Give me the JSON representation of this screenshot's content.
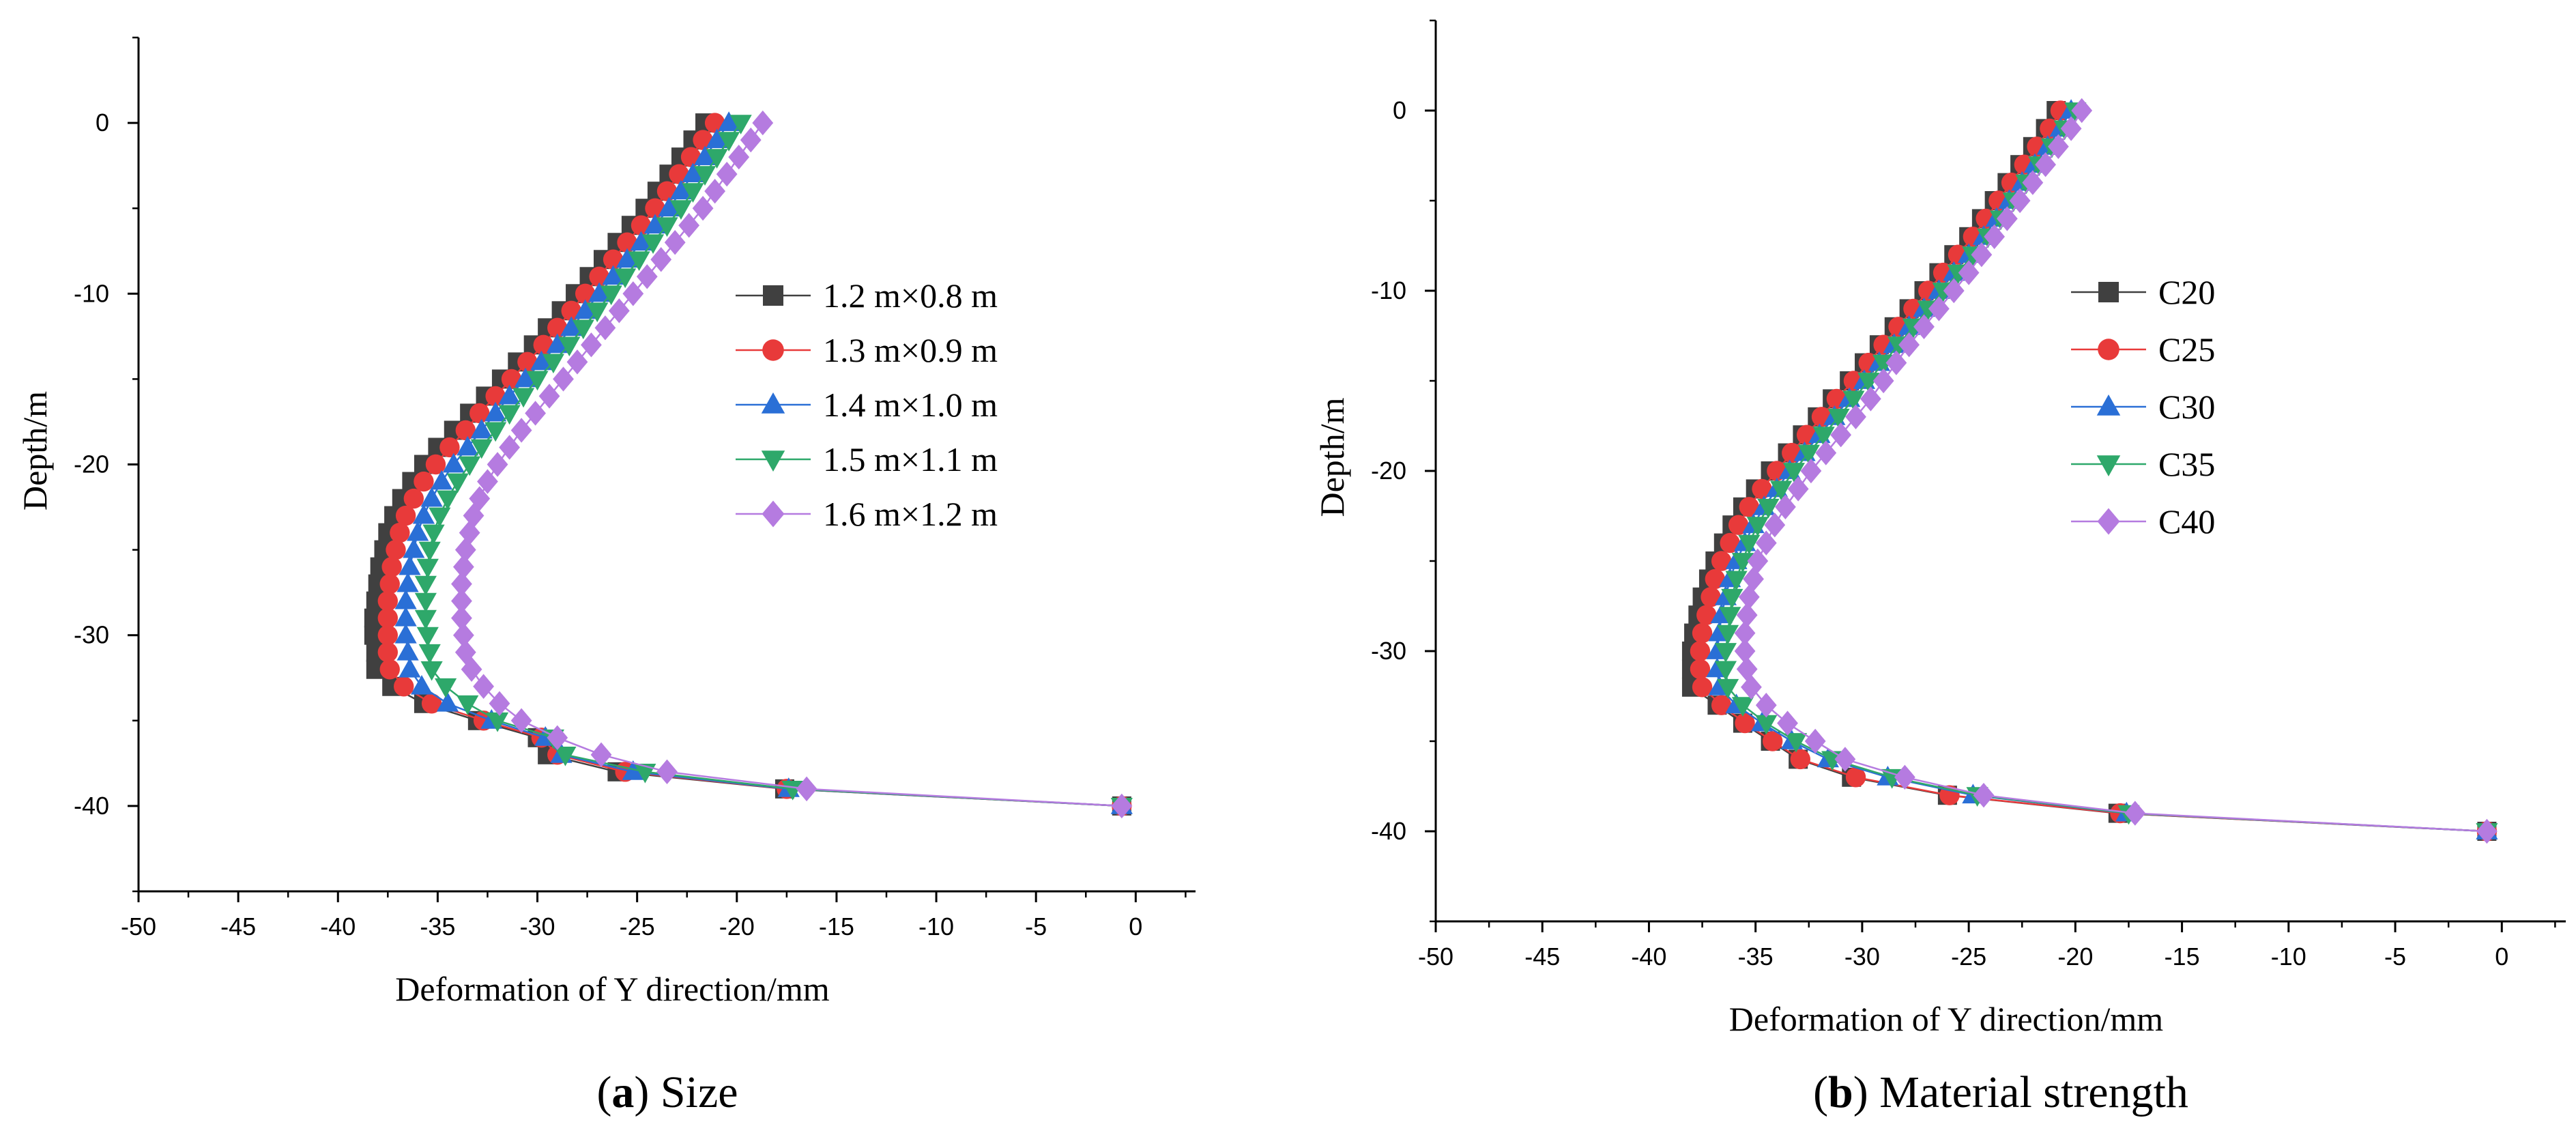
{
  "chart_data": [
    {
      "type": "line",
      "caption_letter": "a",
      "caption_open": "(",
      "caption_close": ")",
      "caption_text": " Size",
      "xlabel": "Deformation of Y direction/mm",
      "ylabel": "Depth/m",
      "xlim": [
        -50,
        3
      ],
      "ylim": [
        -45,
        5
      ],
      "xticks": [
        -50,
        -45,
        -40,
        -35,
        -30,
        -25,
        -20,
        -15,
        -10,
        -5,
        0
      ],
      "xtick_labels": [
        "-50",
        "-45",
        "-40",
        "-35",
        "-30",
        "-25",
        "-20",
        "-15",
        "-10",
        "-5",
        "0"
      ],
      "yticks": [
        0,
        -10,
        -20,
        -30,
        -40
      ],
      "ytick_labels": [
        "0",
        "-10",
        "-20",
        "-30",
        "-40"
      ],
      "legend_position": "upper-middle",
      "y": [
        0,
        -1,
        -2,
        -3,
        -4,
        -5,
        -6,
        -7,
        -8,
        -9,
        -10,
        -11,
        -12,
        -13,
        -14,
        -15,
        -16,
        -17,
        -18,
        -19,
        -20,
        -21,
        -22,
        -23,
        -24,
        -25,
        -26,
        -27,
        -28,
        -29,
        -30,
        -31,
        -32,
        -33,
        -34,
        -35,
        -36,
        -37,
        -38,
        -39,
        -40
      ],
      "series": [
        {
          "name": "1.2 m×0.8 m",
          "color": "#404040",
          "marker": "square",
          "x": [
            -21.6,
            -22.2,
            -22.8,
            -23.4,
            -24.0,
            -24.6,
            -25.3,
            -26.0,
            -26.7,
            -27.4,
            -28.1,
            -28.8,
            -29.5,
            -30.2,
            -31.0,
            -31.8,
            -32.6,
            -33.4,
            -34.2,
            -35.0,
            -35.7,
            -36.3,
            -36.8,
            -37.2,
            -37.5,
            -37.7,
            -37.9,
            -38.0,
            -38.1,
            -38.2,
            -38.2,
            -38.1,
            -38.1,
            -37.3,
            -35.7,
            -33.0,
            -30.0,
            -29.5,
            -26.0,
            -17.6,
            -0.7
          ]
        },
        {
          "name": "1.3 m×0.9 m",
          "color": "#e83a3a",
          "marker": "circle",
          "x": [
            -21.1,
            -21.7,
            -22.3,
            -22.9,
            -23.5,
            -24.1,
            -24.8,
            -25.5,
            -26.2,
            -26.9,
            -27.6,
            -28.3,
            -29.0,
            -29.7,
            -30.5,
            -31.3,
            -32.1,
            -32.9,
            -33.6,
            -34.4,
            -35.1,
            -35.7,
            -36.2,
            -36.6,
            -36.9,
            -37.1,
            -37.3,
            -37.4,
            -37.5,
            -37.5,
            -37.5,
            -37.5,
            -37.4,
            -36.7,
            -35.3,
            -32.7,
            -29.8,
            -29.0,
            -25.6,
            -17.5,
            -0.7
          ]
        },
        {
          "name": "1.4 m×1.0 m",
          "color": "#2a6fd6",
          "marker": "triangle-up",
          "x": [
            -20.4,
            -21.0,
            -21.6,
            -22.2,
            -22.8,
            -23.4,
            -24.1,
            -24.8,
            -25.5,
            -26.2,
            -26.9,
            -27.6,
            -28.3,
            -29.0,
            -29.8,
            -30.6,
            -31.4,
            -32.1,
            -32.8,
            -33.5,
            -34.2,
            -34.8,
            -35.3,
            -35.7,
            -36.0,
            -36.2,
            -36.4,
            -36.5,
            -36.6,
            -36.6,
            -36.6,
            -36.5,
            -36.4,
            -35.8,
            -34.5,
            -32.3,
            -29.6,
            -28.8,
            -25.2,
            -17.4,
            -0.7
          ]
        },
        {
          "name": "1.5 m×1.1 m",
          "color": "#2ea86a",
          "marker": "triangle-down",
          "x": [
            -19.8,
            -20.4,
            -21.0,
            -21.6,
            -22.2,
            -22.8,
            -23.5,
            -24.2,
            -24.9,
            -25.6,
            -26.3,
            -27.0,
            -27.7,
            -28.4,
            -29.2,
            -30.0,
            -30.7,
            -31.4,
            -32.1,
            -32.8,
            -33.4,
            -34.0,
            -34.5,
            -34.9,
            -35.2,
            -35.4,
            -35.5,
            -35.6,
            -35.6,
            -35.6,
            -35.5,
            -35.4,
            -35.3,
            -34.6,
            -33.5,
            -32.0,
            -29.2,
            -28.6,
            -24.6,
            -17.2,
            -0.7
          ]
        },
        {
          "name": "1.6 m×1.2 m",
          "color": "#b57be0",
          "marker": "diamond",
          "x": [
            -18.7,
            -19.3,
            -19.9,
            -20.5,
            -21.1,
            -21.7,
            -22.4,
            -23.1,
            -23.8,
            -24.5,
            -25.2,
            -25.9,
            -26.6,
            -27.3,
            -28.0,
            -28.7,
            -29.4,
            -30.1,
            -30.8,
            -31.4,
            -32.0,
            -32.5,
            -32.9,
            -33.2,
            -33.4,
            -33.6,
            -33.7,
            -33.8,
            -33.8,
            -33.8,
            -33.7,
            -33.6,
            -33.3,
            -32.7,
            -31.9,
            -30.8,
            -29.0,
            -26.8,
            -23.5,
            -16.5,
            -0.7
          ]
        }
      ]
    },
    {
      "type": "line",
      "caption_letter": "b",
      "caption_open": "(",
      "caption_close": ")",
      "caption_text": " Material strength",
      "xlabel": "Deformation of Y direction/mm",
      "ylabel": "Depth/m",
      "xlim": [
        -50,
        3
      ],
      "ylim": [
        -45,
        5
      ],
      "xticks": [
        -50,
        -45,
        -40,
        -35,
        -30,
        -25,
        -20,
        -15,
        -10,
        -5,
        0
      ],
      "xtick_labels": [
        "-50",
        "-45",
        "-40",
        "-35",
        "-30",
        "-25",
        "-20",
        "-15",
        "-10",
        "-5",
        "0"
      ],
      "yticks": [
        0,
        -10,
        -20,
        -30,
        -40
      ],
      "ytick_labels": [
        "0",
        "-10",
        "-20",
        "-30",
        "-40"
      ],
      "legend_position": "upper-middle",
      "y": [
        0,
        -1,
        -2,
        -3,
        -4,
        -5,
        -6,
        -7,
        -8,
        -9,
        -10,
        -11,
        -12,
        -13,
        -14,
        -15,
        -16,
        -17,
        -18,
        -19,
        -20,
        -21,
        -22,
        -23,
        -24,
        -25,
        -26,
        -27,
        -28,
        -29,
        -30,
        -31,
        -32,
        -33,
        -34,
        -35,
        -36,
        -37,
        -38,
        -39,
        -40
      ],
      "series": [
        {
          "name": "C20",
          "color": "#404040",
          "marker": "square",
          "x": [
            -20.9,
            -21.4,
            -22.0,
            -22.6,
            -23.2,
            -23.8,
            -24.4,
            -25.0,
            -25.7,
            -26.4,
            -27.1,
            -27.8,
            -28.5,
            -29.2,
            -29.9,
            -30.6,
            -31.4,
            -32.1,
            -32.8,
            -33.5,
            -34.3,
            -35.0,
            -35.6,
            -36.1,
            -36.5,
            -36.9,
            -37.2,
            -37.5,
            -37.7,
            -37.9,
            -38.0,
            -38.0,
            -38.0,
            -36.8,
            -35.6,
            -34.3,
            -33.0,
            -30.5,
            -26.0,
            -18.0,
            -0.7
          ]
        },
        {
          "name": "C25",
          "color": "#e83a3a",
          "marker": "circle",
          "x": [
            -20.7,
            -21.2,
            -21.8,
            -22.4,
            -23.0,
            -23.6,
            -24.2,
            -24.8,
            -25.5,
            -26.2,
            -26.9,
            -27.6,
            -28.3,
            -29.0,
            -29.7,
            -30.4,
            -31.2,
            -31.9,
            -32.6,
            -33.3,
            -34.0,
            -34.7,
            -35.3,
            -35.8,
            -36.2,
            -36.6,
            -36.9,
            -37.1,
            -37.3,
            -37.5,
            -37.6,
            -37.6,
            -37.5,
            -36.6,
            -35.5,
            -34.2,
            -32.9,
            -30.3,
            -25.9,
            -17.9,
            -0.7
          ]
        },
        {
          "name": "C30",
          "color": "#2a6fd6",
          "marker": "triangle-up",
          "x": [
            -20.2,
            -20.7,
            -21.3,
            -21.9,
            -22.5,
            -23.1,
            -23.7,
            -24.3,
            -25.0,
            -25.7,
            -26.4,
            -27.1,
            -27.8,
            -28.5,
            -29.2,
            -29.9,
            -30.6,
            -31.3,
            -32.0,
            -32.7,
            -33.4,
            -34.0,
            -34.6,
            -35.1,
            -35.5,
            -35.9,
            -36.2,
            -36.4,
            -36.6,
            -36.7,
            -36.8,
            -36.8,
            -36.7,
            -35.9,
            -34.7,
            -33.3,
            -31.6,
            -28.8,
            -24.8,
            -17.6,
            -0.7
          ]
        },
        {
          "name": "C35",
          "color": "#2ea86a",
          "marker": "triangle-down",
          "x": [
            -20.0,
            -20.5,
            -21.1,
            -21.7,
            -22.3,
            -22.9,
            -23.5,
            -24.1,
            -24.8,
            -25.5,
            -26.2,
            -26.9,
            -27.6,
            -28.3,
            -29.0,
            -29.7,
            -30.4,
            -31.1,
            -31.8,
            -32.5,
            -33.2,
            -33.8,
            -34.4,
            -34.9,
            -35.3,
            -35.6,
            -35.9,
            -36.1,
            -36.2,
            -36.3,
            -36.4,
            -36.4,
            -36.3,
            -35.6,
            -34.5,
            -33.1,
            -31.4,
            -28.6,
            -24.6,
            -17.5,
            -0.7
          ]
        },
        {
          "name": "C40",
          "color": "#b57be0",
          "marker": "diamond",
          "x": [
            -19.7,
            -20.2,
            -20.8,
            -21.4,
            -22.0,
            -22.6,
            -23.2,
            -23.8,
            -24.4,
            -25.0,
            -25.7,
            -26.4,
            -27.1,
            -27.8,
            -28.4,
            -29.0,
            -29.6,
            -30.3,
            -31.0,
            -31.7,
            -32.4,
            -33.0,
            -33.6,
            -34.1,
            -34.5,
            -34.9,
            -35.1,
            -35.3,
            -35.4,
            -35.5,
            -35.5,
            -35.4,
            -35.2,
            -34.5,
            -33.5,
            -32.2,
            -30.8,
            -28.0,
            -24.3,
            -17.2,
            -0.7
          ]
        }
      ]
    }
  ]
}
